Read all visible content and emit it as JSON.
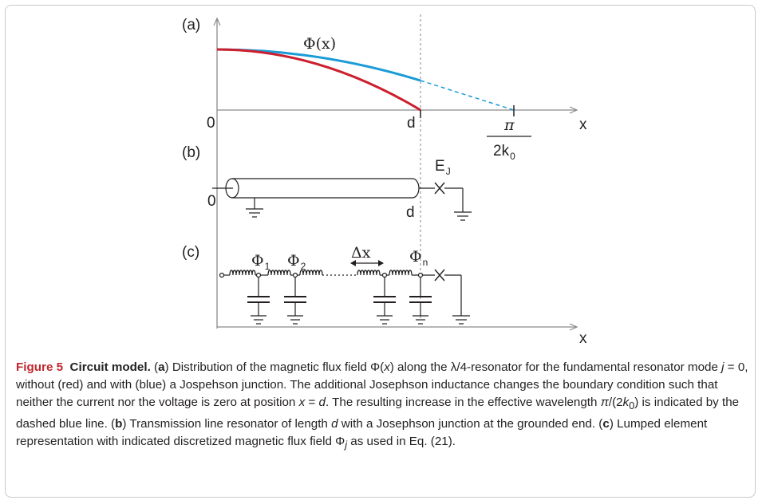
{
  "figure": {
    "panel_labels": {
      "a": "(a)",
      "b": "(b)",
      "c": "(c)"
    },
    "panel_a": {
      "curve_label": "Φ(x)",
      "origin_label": "0",
      "d_label": "d",
      "x_axis_label": "x",
      "pi_numerator": "π",
      "pi_denominator_base": "2k",
      "pi_denominator_sub": "0"
    },
    "panel_b": {
      "left_label": "0",
      "right_label": "d",
      "junction_label_base": "E",
      "junction_label_sub": "J"
    },
    "panel_c": {
      "phi_symbol": "Φ",
      "phi1_sub": "1",
      "phi2_sub": "2",
      "phin_sub": "n",
      "delta_label": "Δx",
      "x_axis_label": "x"
    },
    "colors": {
      "red_curve": "#cc1f2d",
      "blue_curve": "#1a9bd7",
      "ink": "#231f20",
      "axis": "#8a8a8a"
    }
  },
  "caption": {
    "figure_number": "Figure 5",
    "title": "Circuit model.",
    "p1": "(",
    "a_letter": "a",
    "p2": ") Distribution of the magnetic flux field Φ(",
    "x_var": "x",
    "p3": ") along the λ/4-resonator for the fundamental resonator mode ",
    "j_var": "j",
    "p4": " = 0, without (red) and with (blue) a Jospehson junction. The additional Josephson inductance changes the boundary condition such that neither the current nor the voltage is zero at position ",
    "x_var2": "x",
    "p5": " = ",
    "d_var": "d",
    "p6": ". The resulting increase in the effective wavelength ",
    "pi_sym": "π",
    "p7": "/(2",
    "k_var": "k",
    "k_sub": "0",
    "p8": ") is indicated by the dashed blue line. (",
    "b_letter": "b",
    "p9": ") Transmission line resonator of length ",
    "d_var2": "d",
    "p10": " with a Josephson junction at the grounded end. (",
    "c_letter": "c",
    "p11": ") Lumped element representation with indicated discretized magnetic flux field Φ",
    "phi_sub": "j",
    "p12": " as used in Eq. (",
    "eq_ref": "21",
    "p13": ")."
  }
}
